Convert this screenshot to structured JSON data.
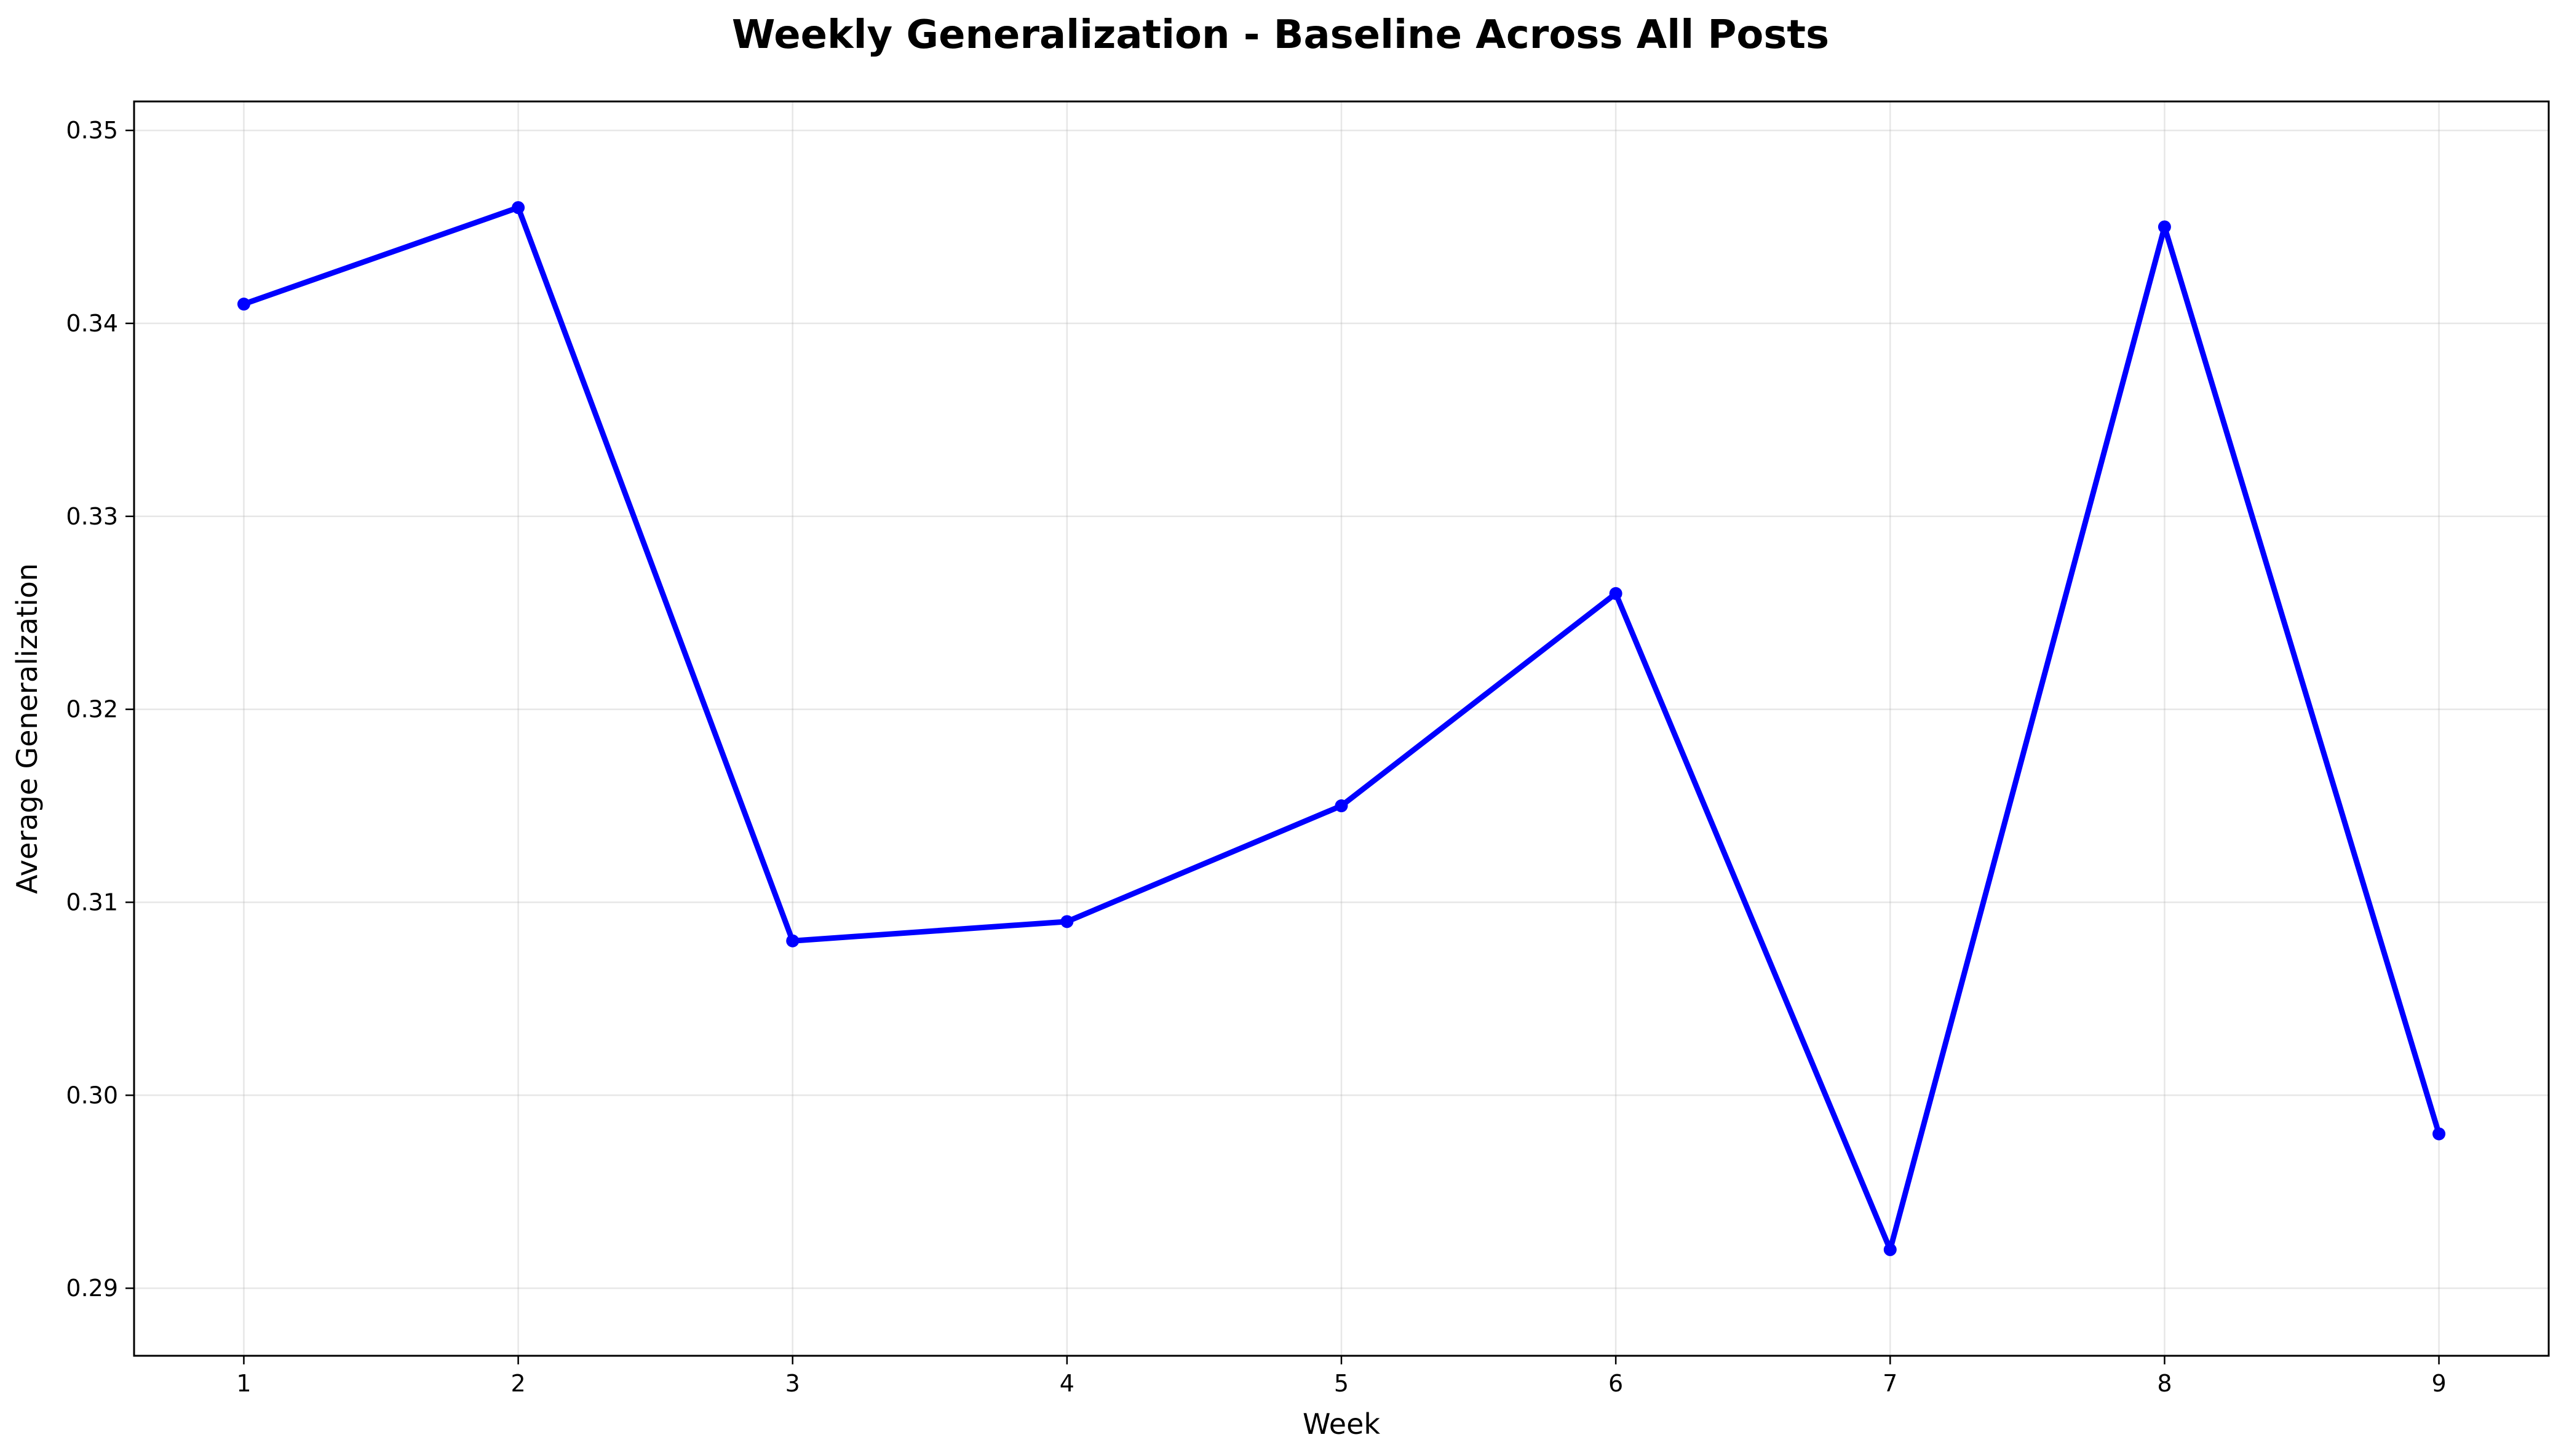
{
  "chart_data": {
    "type": "line",
    "title": "Weekly Generalization - Baseline Across All Posts",
    "xlabel": "Week",
    "ylabel": "Average Generalization",
    "x": [
      1,
      2,
      3,
      4,
      5,
      6,
      7,
      8,
      9
    ],
    "series": [
      {
        "values": [
          0.341,
          0.346,
          0.308,
          0.309,
          0.315,
          0.326,
          0.292,
          0.345,
          0.298
        ],
        "color": "#0000ff",
        "marker": "circle"
      }
    ],
    "xlim": [
      0.6,
      9.4
    ],
    "ylim": [
      0.2865,
      0.3515
    ],
    "xticks": [
      "1",
      "2",
      "3",
      "4",
      "5",
      "6",
      "7",
      "8",
      "9"
    ],
    "yticks": [
      "0.29",
      "0.30",
      "0.31",
      "0.32",
      "0.33",
      "0.34",
      "0.35"
    ],
    "grid": true,
    "legend": "none"
  }
}
